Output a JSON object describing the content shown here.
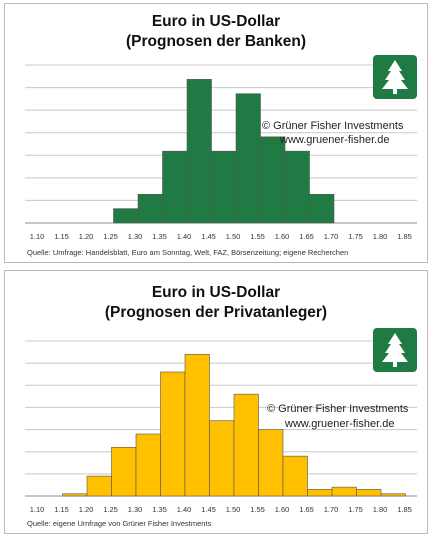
{
  "colors": {
    "bank_bar": "#207a43",
    "private_bar": "#ffc000",
    "grid": "#c8c8c8",
    "logo": "#207a43"
  },
  "icons": {
    "logo": "tree-icon"
  },
  "chart_data": [
    {
      "type": "bar",
      "title_line1": "Euro in US-Dollar",
      "title_line2": "(Prognosen der Banken)",
      "credit_line1": "© Grüner Fisher Investments",
      "credit_line2": "www.gruener-fisher.de",
      "source": "Quelle: Umfrage: Handelsblatt, Euro am Sonntag, Welt, FAZ, Börsenzeitung; eigene Recherchen",
      "bar_color": "#207a43",
      "grid": true,
      "categories": [
        "1.10",
        "1.15",
        "1.20",
        "1.25",
        "1.30",
        "1.35",
        "1.40",
        "1.45",
        "1.50",
        "1.55",
        "1.60",
        "1.65",
        "1.70",
        "1.75",
        "1.80",
        "1.85"
      ],
      "values": [
        0,
        0,
        0,
        1,
        2,
        5,
        10,
        5,
        9,
        6,
        5,
        2,
        0,
        0,
        0,
        0
      ],
      "ylim": [
        0,
        11
      ]
    },
    {
      "type": "bar",
      "title_line1": "Euro in US-Dollar",
      "title_line2": "(Prognosen der Privatanleger)",
      "credit_line1": "© Grüner Fisher Investments",
      "credit_line2": "www.gruener-fisher.de",
      "source": "Quelle: eigene Umfrage von Grüner Fisher Investments",
      "bar_color": "#ffc000",
      "grid": true,
      "categories": [
        "1.10",
        "1.15",
        "1.20",
        "1.25",
        "1.30",
        "1.35",
        "1.40",
        "1.45",
        "1.50",
        "1.55",
        "1.60",
        "1.65",
        "1.70",
        "1.75",
        "1.80",
        "1.85"
      ],
      "values": [
        0,
        0.5,
        4.5,
        11,
        14,
        28,
        32,
        17,
        23,
        15,
        9,
        1.5,
        2,
        1.5,
        0.5,
        0
      ],
      "ylim": [
        0,
        35
      ]
    }
  ]
}
